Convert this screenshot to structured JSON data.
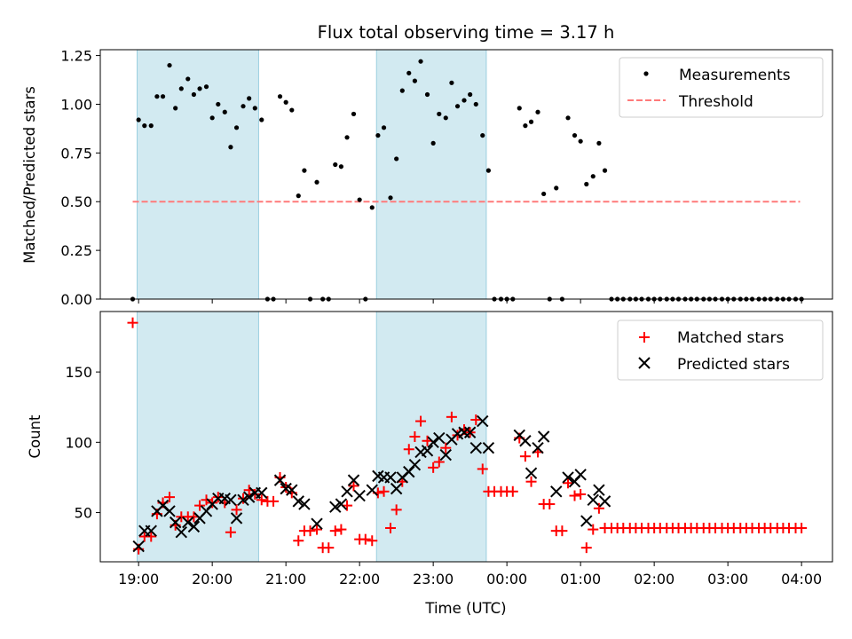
{
  "title": "Flux total observing time = 3.17 h",
  "colors": {
    "measurement": "#000000",
    "threshold": "#ff7a7a",
    "matched": "#ff0000",
    "predicted": "#000000",
    "band": "#add8e6"
  },
  "x_axis": {
    "label": "Time (UTC)",
    "range_hours": [
      18.48,
      4.42
    ],
    "ticks": [
      {
        "h": 19,
        "label": "19:00"
      },
      {
        "h": 20,
        "label": "20:00"
      },
      {
        "h": 21,
        "label": "21:00"
      },
      {
        "h": 22,
        "label": "22:00"
      },
      {
        "h": 23,
        "label": "23:00"
      },
      {
        "h": 24,
        "label": "00:00"
      },
      {
        "h": 25,
        "label": "01:00"
      },
      {
        "h": 26,
        "label": "02:00"
      },
      {
        "h": 27,
        "label": "03:00"
      },
      {
        "h": 28,
        "label": "04:00"
      }
    ]
  },
  "chart_data": [
    {
      "type": "scatter",
      "panel": "ratio",
      "ylabel": "Matched/Predicted stars",
      "ylim": [
        0,
        1.28
      ],
      "yticks": [
        {
          "v": 0,
          "label": "0.00"
        },
        {
          "v": 0.25,
          "label": "0.25"
        },
        {
          "v": 0.5,
          "label": "0.50"
        },
        {
          "v": 0.75,
          "label": "0.75"
        },
        {
          "v": 1.0,
          "label": "1.00"
        },
        {
          "v": 1.25,
          "label": "1.25"
        }
      ],
      "legend": {
        "position": "top-right",
        "entries": [
          {
            "key": "measurement",
            "label": "Measurements"
          },
          {
            "key": "threshold",
            "label": "Threshold"
          }
        ]
      },
      "threshold": {
        "value": 0.5,
        "x_range": [
          18.92,
          27.98
        ]
      },
      "bands": [
        [
          18.98,
          20.63
        ],
        [
          22.23,
          23.72
        ]
      ],
      "series": [
        {
          "name": "Measurements",
          "x": [
            18.92,
            19.0,
            19.08,
            19.17,
            19.25,
            19.33,
            19.42,
            19.5,
            19.58,
            19.67,
            19.75,
            19.83,
            19.92,
            20.0,
            20.08,
            20.17,
            20.25,
            20.33,
            20.42,
            20.5,
            20.58,
            20.67,
            20.75,
            20.83,
            20.92,
            21.0,
            21.08,
            21.17,
            21.25,
            21.33,
            21.42,
            21.5,
            21.58,
            21.67,
            21.75,
            21.83,
            21.92,
            22.0,
            22.08,
            22.17,
            22.25,
            22.33,
            22.42,
            22.5,
            22.58,
            22.67,
            22.75,
            22.83,
            22.92,
            23.0,
            23.08,
            23.17,
            23.25,
            23.33,
            23.42,
            23.5,
            23.58,
            23.67,
            23.75,
            23.83,
            23.92,
            24.0,
            24.08,
            24.17,
            24.25,
            24.33,
            24.42,
            24.5,
            24.58,
            24.67,
            24.75,
            24.83,
            24.92,
            25.0,
            25.08,
            25.17,
            25.25,
            25.33,
            25.42,
            25.5,
            25.58,
            25.67,
            25.75,
            25.83,
            25.92,
            26.0,
            26.08,
            26.17,
            26.25,
            26.33,
            26.42,
            26.5,
            26.58,
            26.67,
            26.75,
            26.83,
            26.92,
            27.0,
            27.08,
            27.17,
            27.25,
            27.33,
            27.42,
            27.5,
            27.58,
            27.67,
            27.75,
            27.83,
            27.92,
            28.0
          ],
          "values": [
            0.0,
            0.92,
            0.89,
            0.89,
            1.04,
            1.04,
            1.2,
            0.98,
            1.08,
            1.13,
            1.05,
            1.08,
            1.09,
            0.93,
            1.0,
            0.96,
            0.78,
            0.88,
            0.99,
            1.03,
            0.98,
            0.92,
            0.0,
            0.0,
            1.04,
            1.01,
            0.97,
            0.53,
            0.66,
            0.0,
            0.6,
            0.0,
            0.0,
            0.69,
            0.68,
            0.83,
            0.95,
            0.51,
            0.0,
            0.47,
            0.84,
            0.88,
            0.52,
            0.72,
            1.07,
            1.16,
            1.12,
            1.22,
            1.05,
            0.8,
            0.95,
            0.93,
            1.11,
            0.99,
            1.02,
            1.05,
            1.0,
            0.84,
            0.66,
            0.0,
            0.0,
            0.0,
            0.0,
            0.98,
            0.89,
            0.91,
            0.96,
            0.54,
            0.0,
            0.57,
            0.0,
            0.93,
            0.84,
            0.81,
            0.59,
            0.63,
            0.8,
            0.66,
            0.0,
            0.0,
            0.0,
            0.0,
            0.0,
            0.0,
            0.0,
            0.0,
            0.0,
            0.0,
            0.0,
            0.0,
            0.0,
            0.0,
            0.0,
            0.0,
            0.0,
            0.0,
            0.0,
            0.0,
            0.0,
            0.0,
            0.0,
            0.0,
            0.0,
            0.0,
            0.0,
            0.0,
            0.0,
            0.0,
            0.0,
            0.0
          ]
        }
      ]
    },
    {
      "type": "scatter",
      "panel": "counts",
      "ylabel": "Count",
      "xlabel": "Time (UTC)",
      "ylim": [
        15,
        193
      ],
      "yticks": [
        {
          "v": 50,
          "label": "50"
        },
        {
          "v": 100,
          "label": "100"
        },
        {
          "v": 150,
          "label": "150"
        }
      ],
      "legend": {
        "position": "top-right",
        "entries": [
          {
            "key": "matched",
            "label": "Matched stars"
          },
          {
            "key": "predicted",
            "label": "Predicted stars"
          }
        ]
      },
      "bands": [
        [
          18.98,
          20.63
        ],
        [
          22.23,
          23.72
        ]
      ],
      "series": [
        {
          "name": "Matched stars",
          "marker": "plus",
          "x": [
            18.92,
            19.0,
            19.08,
            19.17,
            19.25,
            19.33,
            19.42,
            19.5,
            19.58,
            19.67,
            19.75,
            19.83,
            19.92,
            20.0,
            20.08,
            20.17,
            20.25,
            20.33,
            20.42,
            20.5,
            20.58,
            20.67,
            20.75,
            20.83,
            20.92,
            21.0,
            21.08,
            21.17,
            21.25,
            21.33,
            21.42,
            21.5,
            21.58,
            21.67,
            21.75,
            21.83,
            21.92,
            22.0,
            22.08,
            22.17,
            22.25,
            22.33,
            22.42,
            22.5,
            22.58,
            22.67,
            22.75,
            22.83,
            22.92,
            23.0,
            23.08,
            23.17,
            23.25,
            23.33,
            23.42,
            23.5,
            23.58,
            23.67,
            23.75,
            23.83,
            23.92,
            24.0,
            24.08,
            24.17,
            24.25,
            24.33,
            24.42,
            24.5,
            24.58,
            24.67,
            24.75,
            24.83,
            24.92,
            25.0,
            25.08,
            25.17,
            25.25,
            25.33,
            25.42,
            25.5,
            25.58,
            25.67,
            25.75,
            25.83,
            25.92,
            26.0,
            26.08,
            26.17,
            26.25,
            26.33,
            26.42,
            26.5,
            26.58,
            26.67,
            26.75,
            26.83,
            26.92,
            27.0,
            27.08,
            27.17,
            27.25,
            27.33,
            27.42,
            27.5,
            27.58,
            27.67,
            27.75,
            27.83,
            27.92,
            28.0
          ],
          "values": [
            185,
            24,
            33,
            33,
            49,
            57,
            61,
            41,
            47,
            47,
            47,
            55,
            59,
            57,
            61,
            57,
            36,
            52,
            60,
            66,
            63,
            59,
            58,
            58,
            75,
            68,
            64,
            30,
            37,
            37,
            38,
            25,
            25,
            37,
            38,
            55,
            69,
            31,
            31,
            30,
            64,
            65,
            39,
            52,
            72,
            95,
            104,
            115,
            101,
            82,
            86,
            96,
            118,
            105,
            109,
            107,
            116,
            81,
            65,
            65,
            65,
            65,
            65,
            103,
            90,
            72,
            93,
            56,
            56,
            37,
            37,
            71,
            62,
            63,
            25,
            38,
            53,
            39,
            39,
            39,
            39,
            39,
            39,
            39,
            39,
            39,
            39,
            39,
            39,
            39,
            39,
            39,
            39,
            39,
            39,
            39,
            39,
            39,
            39,
            39,
            39,
            39,
            39,
            39,
            39,
            39,
            39,
            39,
            39,
            39
          ]
        },
        {
          "name": "Predicted stars",
          "marker": "x",
          "x": [
            19.0,
            19.08,
            19.17,
            19.25,
            19.33,
            19.42,
            19.5,
            19.58,
            19.67,
            19.75,
            19.83,
            19.92,
            20.0,
            20.08,
            20.17,
            20.25,
            20.33,
            20.42,
            20.5,
            20.58,
            20.67,
            20.92,
            21.0,
            21.08,
            21.17,
            21.25,
            21.42,
            21.67,
            21.75,
            21.83,
            21.92,
            22.0,
            22.17,
            22.25,
            22.33,
            22.42,
            22.5,
            22.58,
            22.67,
            22.75,
            22.83,
            22.92,
            23.0,
            23.08,
            23.17,
            23.25,
            23.33,
            23.42,
            23.5,
            23.58,
            23.67,
            23.75,
            24.17,
            24.25,
            24.33,
            24.42,
            24.5,
            24.67,
            24.83,
            24.92,
            25.0,
            25.08,
            25.17,
            25.25,
            25.33
          ],
          "values": [
            26,
            37,
            37,
            51,
            55,
            51,
            43,
            36,
            43,
            40,
            46,
            51,
            56,
            60,
            60,
            59,
            46,
            59,
            61,
            64,
            64,
            73,
            67,
            66,
            58,
            56,
            42,
            54,
            56,
            65,
            73,
            62,
            66,
            76,
            75,
            75,
            67,
            75,
            79,
            84,
            93,
            94,
            100,
            103,
            91,
            102,
            106,
            107,
            107,
            96,
            115,
            96,
            105,
            101,
            78,
            96,
            104,
            65,
            75,
            72,
            77,
            44,
            59,
            66,
            58
          ]
        }
      ]
    }
  ]
}
